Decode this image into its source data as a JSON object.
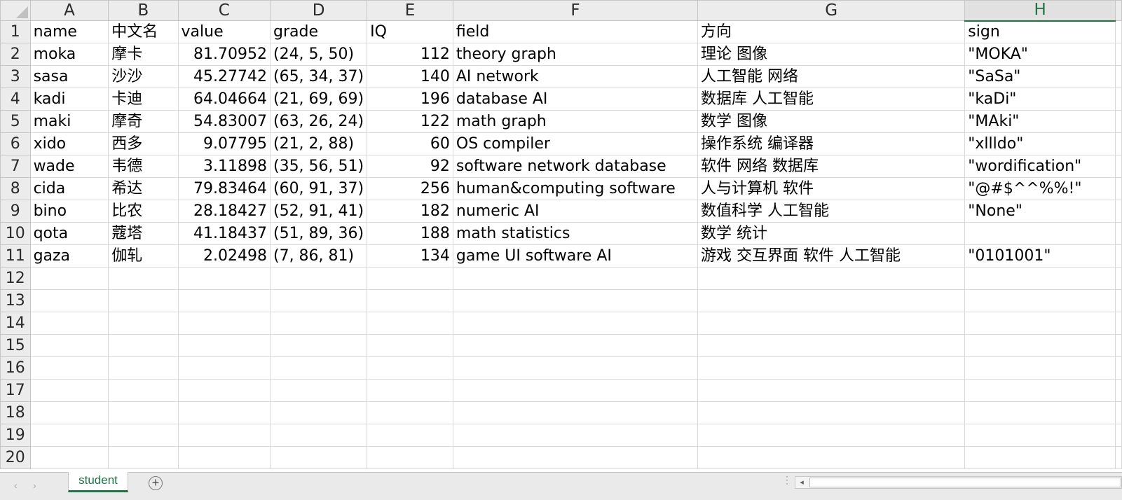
{
  "columns": [
    "A",
    "B",
    "C",
    "D",
    "E",
    "F",
    "G",
    "H"
  ],
  "selected_column": "H",
  "row_numbers": [
    "1",
    "2",
    "3",
    "4",
    "5",
    "6",
    "7",
    "8",
    "9",
    "10",
    "11",
    "12",
    "13",
    "14",
    "15",
    "16",
    "17",
    "18",
    "19",
    "20"
  ],
  "rows": [
    [
      "name",
      "中文名",
      "value",
      "grade",
      "IQ",
      "field",
      "方向",
      "sign"
    ],
    [
      "moka",
      "摩卡",
      "81.70952",
      "(24, 5, 50)",
      "112",
      "theory graph",
      "理论 图像",
      "\"MOKA\""
    ],
    [
      "sasa",
      "沙沙",
      "45.27742",
      "(65, 34, 37)",
      "140",
      "AI network",
      "人工智能 网络",
      "\"SaSa\""
    ],
    [
      "kadi",
      "卡迪",
      "64.04664",
      "(21, 69, 69)",
      "196",
      "database AI",
      "数据库 人工智能",
      "\"kaDi\""
    ],
    [
      "maki",
      "摩奇",
      "54.83007",
      "(63, 26, 24)",
      "122",
      "math graph",
      "数学 图像",
      "\"MAki\""
    ],
    [
      "xido",
      "西多",
      "9.07795",
      "(21, 2, 88)",
      "60",
      "OS compiler",
      "操作系统 编译器",
      "\"xllldo\""
    ],
    [
      "wade",
      "韦德",
      "3.11898",
      "(35, 56, 51)",
      "92",
      "software network database",
      "软件 网络 数据库",
      "\"wordification\""
    ],
    [
      "cida",
      "希达",
      "79.83464",
      "(60, 91, 37)",
      "256",
      "human&computing software",
      "人与计算机 软件",
      "\"@#$^^%%!\""
    ],
    [
      "bino",
      "比农",
      "28.18427",
      "(52, 91, 41)",
      "182",
      "numeric AI",
      "数值科学 人工智能",
      "\"None\""
    ],
    [
      "qota",
      "蔻塔",
      "41.18437",
      "(51, 89, 36)",
      "188",
      "math statistics",
      "数学 统计",
      ""
    ],
    [
      "gaza",
      "伽轧",
      "2.02498",
      "(7, 86, 81)",
      "134",
      "game UI software AI",
      "游戏 交互界面 软件 人工智能",
      "\"0101001\""
    ]
  ],
  "sheet_tabs": [
    "student"
  ],
  "active_tab": "student",
  "icons": {
    "add_sheet": "plus-circle-icon",
    "nav_prev": "chevron-left-icon",
    "nav_next": "chevron-right-icon",
    "scroll_left": "triangle-left-icon"
  },
  "colors": {
    "accent": "#217346",
    "header_bg": "#ececec",
    "gridline": "#d8d8d8"
  }
}
